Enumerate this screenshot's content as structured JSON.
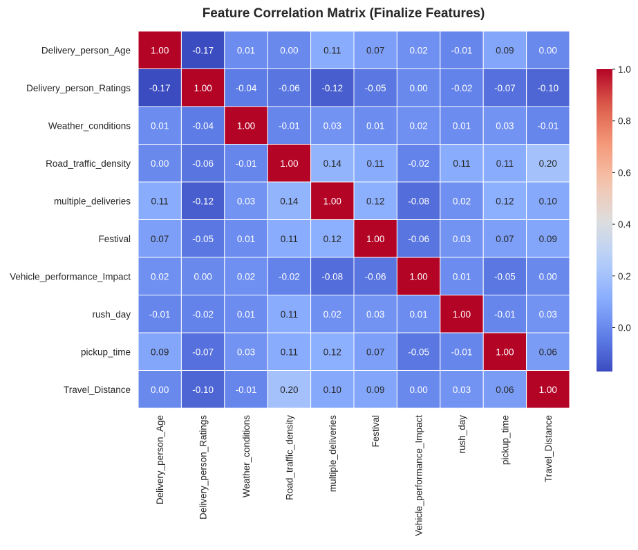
{
  "chart_data": {
    "type": "heatmap",
    "title": "Feature Correlation Matrix (Finalize Features)",
    "xlabel": "",
    "ylabel": "",
    "labels": [
      "Delivery_person_Age",
      "Delivery_person_Ratings",
      "Weather_conditions",
      "Road_traffic_density",
      "multiple_deliveries",
      "Festival",
      "Vehicle_performance_Impact",
      "rush_day",
      "pickup_time",
      "Travel_Distance"
    ],
    "matrix": [
      [
        1.0,
        -0.17,
        0.01,
        -0.0,
        0.11,
        0.07,
        0.02,
        -0.01,
        0.09,
        0.0
      ],
      [
        -0.17,
        1.0,
        -0.04,
        -0.06,
        -0.12,
        -0.05,
        0.0,
        -0.02,
        -0.07,
        -0.1
      ],
      [
        0.01,
        -0.04,
        1.0,
        -0.01,
        0.03,
        0.01,
        0.02,
        0.01,
        0.03,
        -0.01
      ],
      [
        -0.0,
        -0.06,
        -0.01,
        1.0,
        0.14,
        0.11,
        -0.02,
        0.11,
        0.11,
        0.2
      ],
      [
        0.11,
        -0.12,
        0.03,
        0.14,
        1.0,
        0.12,
        -0.08,
        0.02,
        0.12,
        0.1
      ],
      [
        0.07,
        -0.05,
        0.01,
        0.11,
        0.12,
        1.0,
        -0.06,
        0.03,
        0.07,
        0.09
      ],
      [
        0.02,
        0.0,
        0.02,
        -0.02,
        -0.08,
        -0.06,
        1.0,
        0.01,
        -0.05,
        0.0
      ],
      [
        -0.01,
        -0.02,
        0.01,
        0.11,
        0.02,
        0.03,
        0.01,
        1.0,
        -0.01,
        0.03
      ],
      [
        0.09,
        -0.07,
        0.03,
        0.11,
        0.12,
        0.07,
        -0.05,
        -0.01,
        1.0,
        0.06
      ],
      [
        0.0,
        -0.1,
        -0.01,
        0.2,
        0.1,
        0.09,
        0.0,
        0.03,
        0.06,
        1.0
      ]
    ],
    "value_format": "0.00",
    "colormap": "coolwarm",
    "vmin": -0.17,
    "vmax": 1.0,
    "colorbar_ticks": [
      "0.0",
      "0.2",
      "0.4",
      "0.6",
      "0.8",
      "1.0"
    ],
    "colorbar_tick_values": [
      0.0,
      0.2,
      0.4,
      0.6,
      0.8,
      1.0
    ],
    "colorbar_placement": "right",
    "cell_border_color": "#ffffff",
    "annotations_shown": true
  }
}
